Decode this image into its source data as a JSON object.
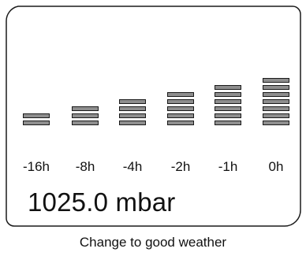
{
  "trend": {
    "columns": [
      {
        "label": "-16h",
        "level": 2
      },
      {
        "label": "-8h",
        "level": 3
      },
      {
        "label": "-4h",
        "level": 4
      },
      {
        "label": "-2h",
        "level": 5
      },
      {
        "label": "-1h",
        "level": 6
      },
      {
        "label": "0h",
        "level": 7
      }
    ]
  },
  "display": {
    "pressure": "1025.0 mbar"
  },
  "status": {
    "text": "Change to good weather"
  },
  "colors": {
    "segment_fill": "#8e8e8e",
    "segment_outline": "#1a1a1a",
    "frame": "#1a1a1a"
  }
}
